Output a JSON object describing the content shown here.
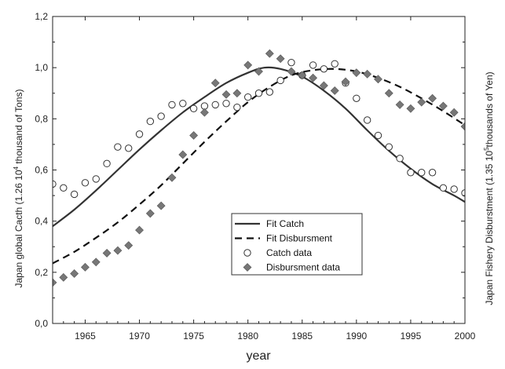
{
  "chart_data": {
    "type": "scatter",
    "title": "",
    "xlabel": "year",
    "ylabel_left_prefix": "Japan global Cacth (1.26 10",
    "ylabel_left_exp": "4",
    "ylabel_left_suffix": " thousand of Tons)",
    "ylabel_right_prefix": "Japan Fishery Disburstment (1.35 10",
    "ylabel_right_exp": "5",
    "ylabel_right_suffix": "thousands of Yen)",
    "xlim": [
      1962,
      2000
    ],
    "ylim": [
      0,
      1.2
    ],
    "x_ticks": [
      1965,
      1970,
      1975,
      1980,
      1985,
      1990,
      1995,
      2000
    ],
    "x_tick_labels": [
      "1965",
      "1970",
      "1975",
      "1980",
      "1985",
      "1990",
      "1995",
      "2000"
    ],
    "y_ticks": [
      0,
      0.2,
      0.4,
      0.6,
      0.8,
      1.0,
      1.2
    ],
    "y_tick_labels": [
      "0,0",
      "0,2",
      "0,4",
      "0,6",
      "0,8",
      "1,0",
      "1,2"
    ],
    "legend_position": "center-bottom",
    "series": [
      {
        "name": "Fit Catch",
        "kind": "line",
        "style": "solid",
        "color": "#333333",
        "x": [
          1962,
          1964,
          1966,
          1968,
          1970,
          1972,
          1974,
          1976,
          1978,
          1980,
          1981.5,
          1983,
          1985,
          1987,
          1989,
          1991,
          1993,
          1995,
          1997,
          1999,
          2000
        ],
        "y": [
          0.38,
          0.445,
          0.52,
          0.6,
          0.68,
          0.755,
          0.825,
          0.885,
          0.94,
          0.98,
          1.0,
          0.995,
          0.965,
          0.91,
          0.84,
          0.755,
          0.675,
          0.605,
          0.545,
          0.5,
          0.475
        ]
      },
      {
        "name": "Fit Disbursment",
        "kind": "line",
        "style": "dashed",
        "color": "#111111",
        "x": [
          1962,
          1964,
          1966,
          1968,
          1970,
          1972,
          1974,
          1976,
          1978,
          1980,
          1982,
          1984,
          1986,
          1988,
          1990,
          1992,
          1994,
          1996,
          1998,
          2000
        ],
        "y": [
          0.235,
          0.28,
          0.335,
          0.395,
          0.465,
          0.54,
          0.625,
          0.71,
          0.79,
          0.865,
          0.925,
          0.97,
          0.99,
          0.995,
          0.985,
          0.96,
          0.925,
          0.88,
          0.83,
          0.775
        ]
      },
      {
        "name": "Catch data",
        "kind": "marker",
        "marker": "open-circle",
        "color": "#333333",
        "x": [
          1962,
          1963,
          1964,
          1965,
          1966,
          1967,
          1968,
          1969,
          1970,
          1971,
          1972,
          1973,
          1974,
          1975,
          1976,
          1977,
          1978,
          1979,
          1980,
          1981,
          1982,
          1983,
          1984,
          1985,
          1986,
          1987,
          1988,
          1989,
          1990,
          1991,
          1992,
          1993,
          1994,
          1995,
          1996,
          1997,
          1998,
          1999,
          2000
        ],
        "y": [
          0.545,
          0.53,
          0.505,
          0.55,
          0.565,
          0.625,
          0.69,
          0.685,
          0.74,
          0.79,
          0.81,
          0.855,
          0.86,
          0.84,
          0.85,
          0.855,
          0.86,
          0.845,
          0.885,
          0.9,
          0.905,
          0.95,
          1.02,
          0.97,
          1.01,
          0.995,
          1.015,
          0.94,
          0.88,
          0.795,
          0.735,
          0.69,
          0.645,
          0.59,
          0.59,
          0.59,
          0.53,
          0.525,
          0.51
        ]
      },
      {
        "name": "Disbursment data",
        "kind": "marker",
        "marker": "filled-diamond",
        "color": "#777777",
        "x": [
          1962,
          1963,
          1964,
          1965,
          1966,
          1967,
          1968,
          1969,
          1970,
          1971,
          1972,
          1973,
          1974,
          1975,
          1976,
          1977,
          1978,
          1979,
          1980,
          1981,
          1982,
          1983,
          1984,
          1985,
          1986,
          1987,
          1988,
          1989,
          1990,
          1991,
          1992,
          1993,
          1994,
          1995,
          1996,
          1997,
          1998,
          1999,
          2000
        ],
        "y": [
          0.16,
          0.18,
          0.195,
          0.22,
          0.24,
          0.275,
          0.285,
          0.305,
          0.365,
          0.43,
          0.46,
          0.57,
          0.66,
          0.735,
          0.825,
          0.94,
          0.895,
          0.9,
          1.01,
          0.985,
          1.055,
          1.035,
          0.985,
          0.97,
          0.96,
          0.93,
          0.91,
          0.945,
          0.98,
          0.975,
          0.955,
          0.9,
          0.855,
          0.84,
          0.865,
          0.88,
          0.85,
          0.825,
          0.77
        ]
      }
    ]
  }
}
